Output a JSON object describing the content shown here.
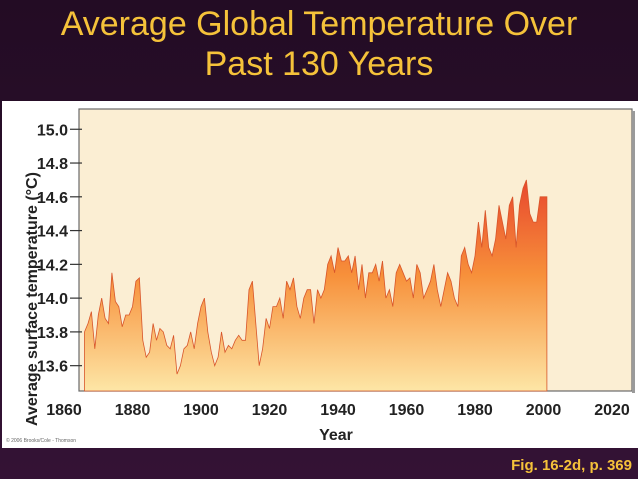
{
  "slide": {
    "title_line1": "Average Global Temperature Over",
    "title_line2": "Past 130 Years",
    "copyright": "© 2006 Brooks/Cole - Thomson",
    "figure_ref": "Fig. 16-2d, p. 369"
  },
  "colors": {
    "background": "#2c0f2d",
    "title": "#f5c23a",
    "plot_frame": "#fbeed3",
    "area_top": "#e8472e",
    "area_mid": "#f7903a",
    "area_bottom": "#fde6a6"
  },
  "chart_data": {
    "type": "area",
    "title": "",
    "xlabel": "Year",
    "ylabel": "Average surface temperature (°C)",
    "xlim": [
      1860,
      2020
    ],
    "ylim": [
      13.45,
      15.12
    ],
    "x_ticks": [
      1860,
      1880,
      1900,
      1920,
      1940,
      1960,
      1980,
      2000,
      2020
    ],
    "x_tick_labels": [
      "1860",
      "1880",
      "1900",
      "1920",
      "1940",
      "1960",
      "1980",
      "2000",
      "2020"
    ],
    "y_ticks": [
      13.6,
      13.8,
      14.0,
      14.2,
      14.4,
      14.6,
      14.8,
      15.0
    ],
    "y_tick_labels": [
      "13.6",
      "13.8",
      "14.0",
      "14.2",
      "14.4",
      "14.6",
      "14.8",
      "15.0"
    ],
    "grid": false,
    "series": [
      {
        "x": [
          1866,
          1867,
          1868,
          1869,
          1870,
          1871,
          1872,
          1873,
          1874,
          1875,
          1876,
          1877,
          1878,
          1879,
          1880,
          1881,
          1882,
          1883,
          1884,
          1885,
          1886,
          1887,
          1888,
          1889,
          1890,
          1891,
          1892,
          1893,
          1894,
          1895,
          1896,
          1897,
          1898,
          1899,
          1900,
          1901,
          1902,
          1903,
          1904,
          1905,
          1906,
          1907,
          1908,
          1909,
          1910,
          1911,
          1912,
          1913,
          1914,
          1915,
          1916,
          1917,
          1918,
          1919,
          1920,
          1921,
          1922,
          1923,
          1924,
          1925,
          1926,
          1927,
          1928,
          1929,
          1930,
          1931,
          1932,
          1933,
          1934,
          1935,
          1936,
          1937,
          1938,
          1939,
          1940,
          1941,
          1942,
          1943,
          1944,
          1945,
          1946,
          1947,
          1948,
          1949,
          1950,
          1951,
          1952,
          1953,
          1954,
          1955,
          1956,
          1957,
          1958,
          1959,
          1960,
          1961,
          1962,
          1963,
          1964,
          1965,
          1966,
          1967,
          1968,
          1969,
          1970,
          1971,
          1972,
          1973,
          1974,
          1975,
          1976,
          1977,
          1978,
          1979,
          1980,
          1981,
          1982,
          1983,
          1984,
          1985,
          1986,
          1987,
          1988,
          1989,
          1990,
          1991,
          1992,
          1993,
          1994,
          1995,
          1996,
          1997,
          1998,
          1999,
          2000,
          2001
        ],
        "values": [
          13.8,
          13.85,
          13.92,
          13.7,
          13.9,
          14.0,
          13.88,
          13.85,
          14.15,
          13.98,
          13.95,
          13.83,
          13.9,
          13.9,
          13.95,
          14.1,
          14.12,
          13.75,
          13.65,
          13.68,
          13.85,
          13.75,
          13.82,
          13.8,
          13.72,
          13.7,
          13.78,
          13.55,
          13.6,
          13.7,
          13.72,
          13.8,
          13.7,
          13.85,
          13.95,
          14.0,
          13.8,
          13.68,
          13.6,
          13.65,
          13.8,
          13.68,
          13.72,
          13.7,
          13.75,
          13.78,
          13.75,
          13.75,
          14.05,
          14.1,
          13.85,
          13.6,
          13.7,
          13.88,
          13.82,
          13.95,
          13.95,
          14.0,
          13.88,
          14.1,
          14.05,
          14.12,
          13.95,
          13.88,
          14.0,
          14.05,
          14.05,
          13.85,
          14.05,
          14.0,
          14.05,
          14.2,
          14.25,
          14.15,
          14.3,
          14.22,
          14.22,
          14.25,
          14.15,
          14.25,
          14.05,
          14.2,
          14.0,
          14.15,
          14.15,
          14.2,
          14.1,
          14.22,
          14.0,
          14.05,
          13.95,
          14.15,
          14.2,
          14.15,
          14.1,
          14.12,
          14.0,
          14.2,
          14.15,
          14.0,
          14.05,
          14.1,
          14.2,
          14.05,
          13.95,
          14.05,
          14.15,
          14.1,
          14.0,
          13.95,
          14.25,
          14.3,
          14.2,
          14.15,
          14.25,
          14.45,
          14.3,
          14.52,
          14.3,
          14.25,
          14.35,
          14.55,
          14.45,
          14.35,
          14.55,
          14.6,
          14.3,
          14.55,
          14.65,
          14.7,
          14.5,
          14.45,
          14.45,
          14.6,
          14.6,
          14.6
        ]
      }
    ]
  }
}
